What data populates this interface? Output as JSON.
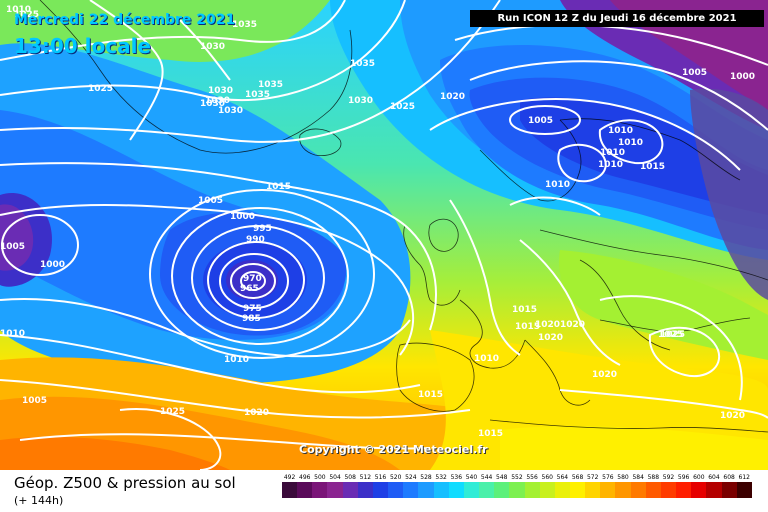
{
  "header": {
    "date": "Mercredi 22 décembre 2021",
    "time": "13:00 locale",
    "run": "Run ICON 12 Z du Jeudi 16 décembre 2021"
  },
  "copyright": "Copyright © 2021 Meteociel.fr",
  "footer": {
    "product": "Géop. Z500 & pression au sol",
    "lead": "(+ 144h)"
  },
  "scale": {
    "labels": [
      "492",
      "496",
      "500",
      "504",
      "508",
      "512",
      "516",
      "520",
      "524",
      "528",
      "532",
      "536",
      "540",
      "544",
      "548",
      "552",
      "556",
      "560",
      "564",
      "568",
      "572",
      "576",
      "580",
      "584",
      "588",
      "592",
      "596",
      "600",
      "604",
      "608",
      "612"
    ],
    "colors": [
      "#3a0a3a",
      "#5a0a5a",
      "#7a1478",
      "#8a2490",
      "#6a2cb4",
      "#3c2fc8",
      "#1e3fe6",
      "#1f5cf5",
      "#1e7bff",
      "#1e9bff",
      "#16bfff",
      "#10dcff",
      "#30ecd6",
      "#4af0aa",
      "#5cf07a",
      "#7cf050",
      "#a4f032",
      "#c8f01e",
      "#eaf00a",
      "#fff000",
      "#ffd400",
      "#ffb400",
      "#ff9600",
      "#ff7a00",
      "#ff5a00",
      "#ff3c00",
      "#ff1e00",
      "#e60000",
      "#b40000",
      "#7a0000",
      "#3c0000"
    ]
  },
  "map": {
    "pressure_labels": [
      {
        "text": "1025"
      },
      {
        "text": "1030"
      },
      {
        "text": "1035"
      },
      {
        "text": "1025"
      },
      {
        "text": "1030"
      },
      {
        "text": "1035"
      },
      {
        "text": "1030"
      },
      {
        "text": "1030"
      },
      {
        "text": "1035"
      },
      {
        "text": "1030"
      },
      {
        "text": "1035"
      },
      {
        "text": "1030"
      },
      {
        "text": "1025"
      },
      {
        "text": "1020"
      },
      {
        "text": "1005"
      },
      {
        "text": "1000"
      },
      {
        "text": "1005"
      },
      {
        "text": "1010"
      },
      {
        "text": "1010"
      },
      {
        "text": "1010"
      },
      {
        "text": "1010"
      },
      {
        "text": "1010"
      },
      {
        "text": "1015"
      },
      {
        "text": "1015"
      },
      {
        "text": "1005"
      },
      {
        "text": "1000"
      },
      {
        "text": "995"
      },
      {
        "text": "990"
      },
      {
        "text": "970"
      },
      {
        "text": "965"
      },
      {
        "text": "975"
      },
      {
        "text": "985"
      },
      {
        "text": "1005"
      },
      {
        "text": "1000"
      },
      {
        "text": "1010"
      },
      {
        "text": "1010"
      },
      {
        "text": "1010"
      },
      {
        "text": "1015"
      },
      {
        "text": "1015"
      },
      {
        "text": "1020"
      },
      {
        "text": "1020"
      },
      {
        "text": "1025"
      },
      {
        "text": "1020"
      },
      {
        "text": "1025"
      },
      {
        "text": "1020"
      },
      {
        "text": "1015"
      },
      {
        "text": "1005"
      },
      {
        "text": "1025"
      },
      {
        "text": "1020"
      },
      {
        "text": "1015"
      },
      {
        "text": "1020"
      },
      {
        "text": "1010"
      }
    ]
  }
}
